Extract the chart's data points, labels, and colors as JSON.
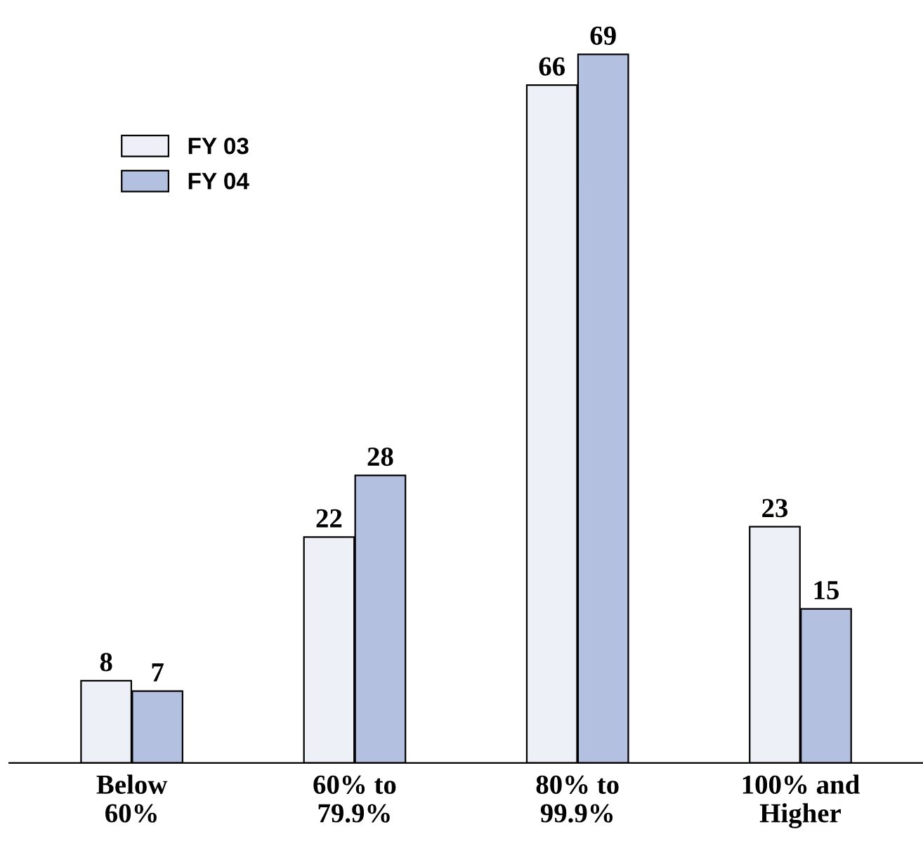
{
  "chart_data": {
    "type": "bar",
    "categories": [
      "Below\n60%",
      "60% to\n79.9%",
      "80% to\n99.9%",
      "100% and\nHigher"
    ],
    "series": [
      {
        "name": "FY 03",
        "color": "#eef0f8",
        "values": [
          8,
          22,
          66,
          23
        ]
      },
      {
        "name": "FY 04",
        "color": "#b4c0e0",
        "values": [
          7,
          28,
          69,
          15
        ]
      }
    ],
    "data_labels": true,
    "legend": "top left",
    "grid": false
  }
}
